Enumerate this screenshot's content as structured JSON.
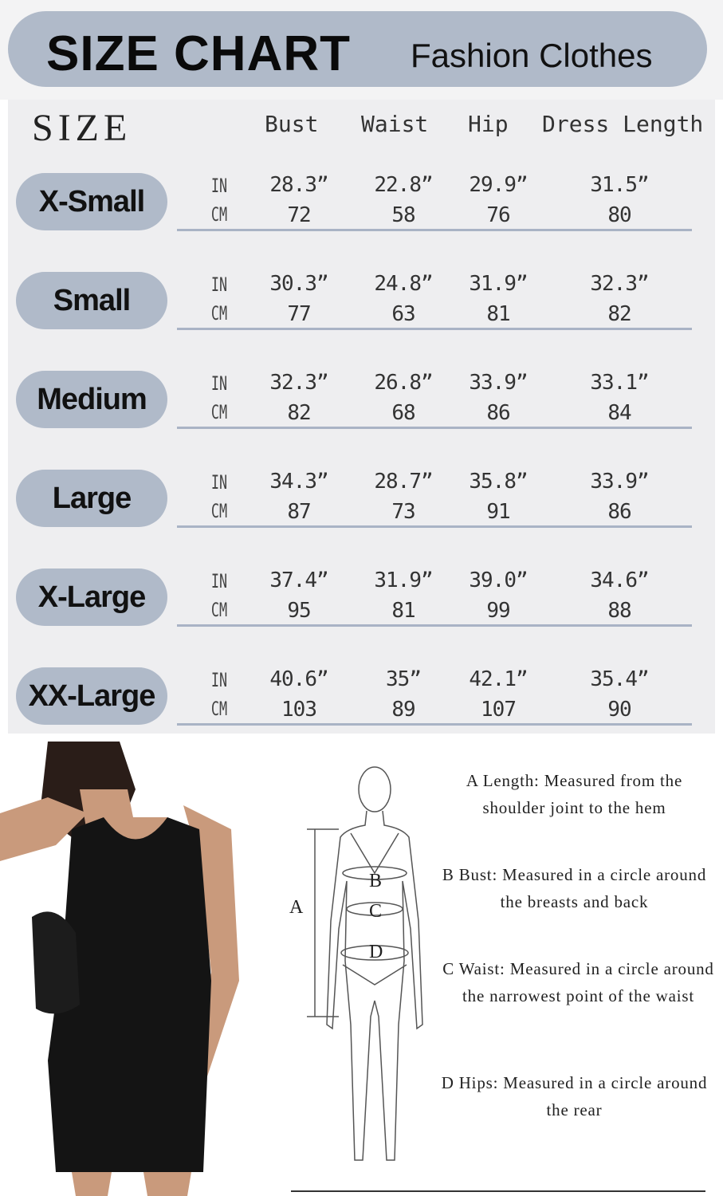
{
  "header": {
    "title": "SIZE CHART",
    "subtitle": "Fashion Clothes"
  },
  "table": {
    "size_label": "SIZE",
    "columns": [
      "Bust",
      "Waist",
      "Hip",
      "Dress Length"
    ],
    "units": [
      "IN",
      "CM"
    ],
    "rows": [
      {
        "size": "X-Small",
        "in": [
          "28.3”",
          "22.8”",
          "29.9”",
          "31.5”"
        ],
        "cm": [
          "72",
          "58",
          "76",
          "80"
        ]
      },
      {
        "size": "Small",
        "in": [
          "30.3”",
          "24.8”",
          "31.9”",
          "32.3”"
        ],
        "cm": [
          "77",
          "63",
          "81",
          "82"
        ]
      },
      {
        "size": "Medium",
        "in": [
          "32.3”",
          "26.8”",
          "33.9”",
          "33.1”"
        ],
        "cm": [
          "82",
          "68",
          "86",
          "84"
        ]
      },
      {
        "size": "Large",
        "in": [
          "34.3”",
          "28.7”",
          "35.8”",
          "33.9”"
        ],
        "cm": [
          "87",
          "73",
          "91",
          "86"
        ]
      },
      {
        "size": "X-Large",
        "in": [
          "37.4”",
          "31.9”",
          "39.0”",
          "34.6”"
        ],
        "cm": [
          "95",
          "81",
          "99",
          "88"
        ]
      },
      {
        "size": "XX-Large",
        "in": [
          "40.6”",
          "35”",
          "42.1”",
          "35.4”"
        ],
        "cm": [
          "103",
          "89",
          "107",
          "90"
        ]
      }
    ]
  },
  "diagram": {
    "labels": [
      "A",
      "B",
      "C",
      "D"
    ]
  },
  "descriptions": [
    "A Length: Measured from the shoulder joint to the hem",
    "B Bust: Measured in a circle around the breasts and back",
    "C Waist: Measured in a circle around the narrowest point of the waist",
    "D Hips: Measured in a circle around the rear"
  ],
  "colors": {
    "pill": "#b0bac9",
    "table_bg": "#eeeef0",
    "divider": "#a9b3c5"
  }
}
